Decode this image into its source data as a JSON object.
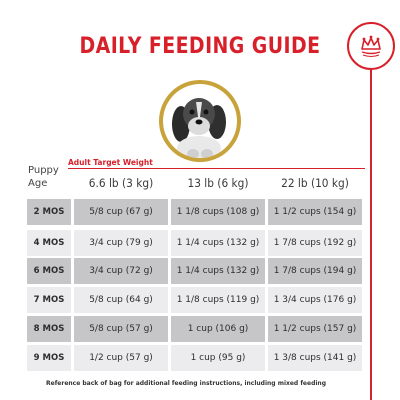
{
  "title": "DAILY FEEDING GUIDE",
  "brand": {
    "logo_icon": "crown-icon"
  },
  "image": {
    "subject": "puppy-icon"
  },
  "table": {
    "target_label": "Adult Target Weight",
    "age_header_line1": "Puppy",
    "age_header_line2": "Age",
    "columns": [
      "6.6 lb (3 kg)",
      "13 lb (6 kg)",
      "22 lb (10 kg)"
    ],
    "rows": [
      {
        "age": "2 MOS",
        "values": [
          "5/8 cup (67 g)",
          "1 1/8 cups (108 g)",
          "1 1/2 cups (154 g)"
        ]
      },
      {
        "age": "4 MOS",
        "values": [
          "3/4 cup (79 g)",
          "1 1/4 cups (132 g)",
          "1 7/8 cups (192 g)"
        ]
      },
      {
        "age": "6 MOS",
        "values": [
          "3/4 cup (72 g)",
          "1 1/4 cups (132 g)",
          "1 7/8 cups (194 g)"
        ]
      },
      {
        "age": "7 MOS",
        "values": [
          "5/8 cup (64 g)",
          "1 1/8 cups (119 g)",
          "1 3/4 cups (176 g)"
        ]
      },
      {
        "age": "8 MOS",
        "values": [
          "5/8 cup (57 g)",
          "1 cup (106 g)",
          "1 1/2 cups (157 g)"
        ]
      },
      {
        "age": "9 MOS",
        "values": [
          "1/2 cup (57 g)",
          "1 cup (95 g)",
          "1 3/8 cups (141 g)"
        ]
      }
    ]
  },
  "footnote": "Reference back of bag for additional feeding instructions, including mixed feeding",
  "colors": {
    "accent": "#d8202a",
    "gold": "#c8a23a",
    "row_dark": "#c6c6c9",
    "row_light": "#ececee"
  }
}
